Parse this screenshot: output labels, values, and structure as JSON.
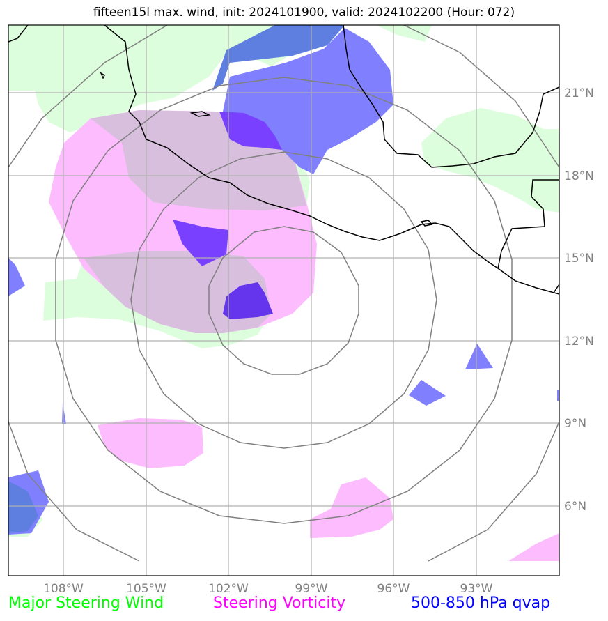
{
  "title": "fifteen15l max. wind, init: 2024101900, valid: 2024102200 (Hour: 072)",
  "axes": {
    "lon_ticks": [
      "108°W",
      "105°W",
      "102°W",
      "99°W",
      "96°W",
      "93°W"
    ],
    "lat_ticks": [
      "21°N",
      "18°N",
      "15°N",
      "12°N",
      "9°N",
      "6°N"
    ]
  },
  "legend": [
    {
      "label": "Major Steering Wind",
      "color": "#00ff00"
    },
    {
      "label": "Steering Vorticity",
      "color": "#ff00ff"
    },
    {
      "label": "500-850 hPa qvap",
      "color": "#0000ff"
    }
  ],
  "colors": {
    "wind_fill": "#ddfedd",
    "vorticity_fill": "#fdbcfd",
    "qvap_fill": "#8080ff",
    "range_ring": "#808080",
    "gridline": "#b0b0b0",
    "coastline": "#000000"
  }
}
